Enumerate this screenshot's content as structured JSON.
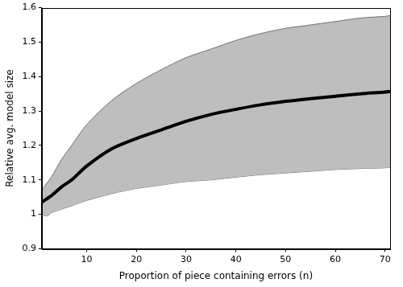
{
  "chart_data": {
    "type": "line",
    "x_label": "Proportion of piece containing errors (n)",
    "y_label": "Relative avg. model size",
    "x": [
      1,
      2,
      3,
      5,
      7,
      10,
      15,
      20,
      25,
      30,
      35,
      40,
      45,
      50,
      55,
      60,
      65,
      70,
      71
    ],
    "series": [
      {
        "color": "#000000",
        "values": [
          1.035,
          1.045,
          1.055,
          1.08,
          1.1,
          1.14,
          1.19,
          1.22,
          1.245,
          1.27,
          1.29,
          1.305,
          1.318,
          1.328,
          1.336,
          1.343,
          1.35,
          1.355,
          1.357
        ],
        "upper": [
          1.07,
          1.09,
          1.11,
          1.16,
          1.2,
          1.26,
          1.33,
          1.38,
          1.42,
          1.455,
          1.48,
          1.505,
          1.525,
          1.54,
          1.55,
          1.56,
          1.57,
          1.575,
          1.577
        ],
        "lower": [
          1.0,
          0.995,
          1.005,
          1.015,
          1.025,
          1.04,
          1.06,
          1.075,
          1.085,
          1.095,
          1.1,
          1.108,
          1.115,
          1.12,
          1.125,
          1.13,
          1.133,
          1.135,
          1.137
        ]
      }
    ],
    "xlim": [
      1,
      71
    ],
    "xticks": [
      10,
      20,
      30,
      40,
      50,
      60,
      70
    ],
    "ylim": [
      0.9,
      1.6
    ],
    "yticks": [
      0.9,
      1,
      1.1,
      1.2,
      1.3,
      1.4,
      1.5,
      1.6
    ],
    "grid": false
  }
}
